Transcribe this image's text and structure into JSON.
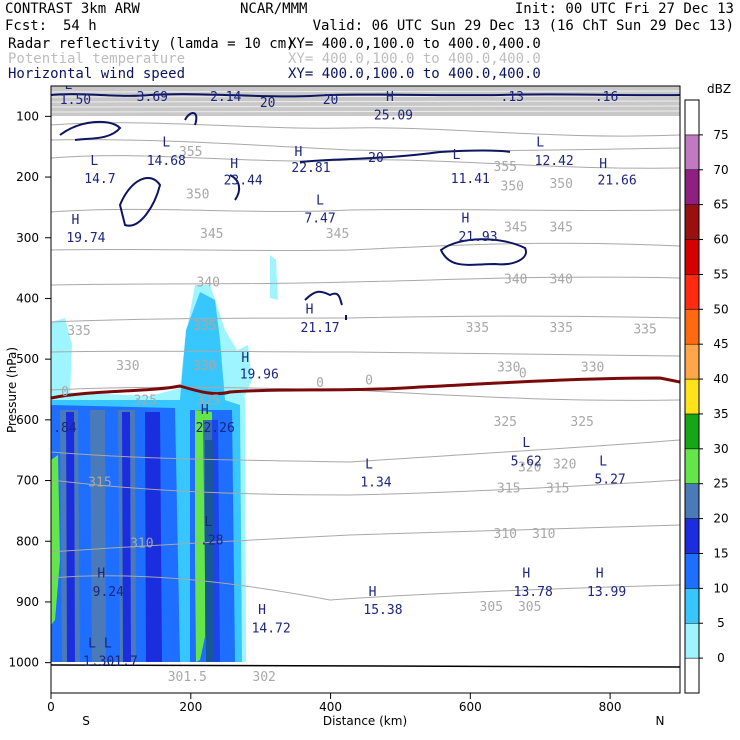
{
  "header": {
    "model": "CONTRAST  3km ARW",
    "org": "NCAR/MMM",
    "init": "Init: 00 UTC Fri 27 Dec 13",
    "fcst_label": "Fcst:",
    "fcst_value": "54 h",
    "valid": "Valid: 06 UTC Sun 29 Dec 13 (16 ChT Sun 29 Dec 13)",
    "field1_name": "Radar reflectivity (lamda = 10 cm)",
    "field1_xy": "XY= 400.0,100.0 to 400.0,400.0",
    "field2_name": "Potential temperature",
    "field2_xy": "XY= 400.0,100.0 to 400.0,400.0",
    "field3_name": "Horizontal wind speed",
    "field3_xy": "XY= 400.0,100.0 to 400.0,400.0"
  },
  "colors": {
    "theta": "#a8a8a8",
    "wind": "#0d1460",
    "zero_isotherm": "#7a0a0a"
  },
  "chart_data": {
    "type": "cross-section",
    "xlabel": "Distance (km)",
    "ylabel": "Pressure (hPa)",
    "xlim": [
      0,
      900
    ],
    "ylim": [
      1050,
      50
    ],
    "x_ticks": [
      0,
      200,
      400,
      600,
      800
    ],
    "y_ticks": [
      100,
      200,
      300,
      400,
      500,
      600,
      700,
      800,
      900,
      1000
    ],
    "x_end_labels": {
      "left": "S",
      "right": "N"
    },
    "colorbar": {
      "unit": "dBZ",
      "levels": [
        0,
        5,
        10,
        15,
        20,
        25,
        30,
        35,
        40,
        45,
        50,
        55,
        60,
        65,
        70,
        75
      ],
      "colors": [
        "#ffffff",
        "#9ff5ff",
        "#38c6ff",
        "#1e6eff",
        "#1a2ee0",
        "#4a7ab8",
        "#64e64a",
        "#16a616",
        "#ffe21a",
        "#ffa64a",
        "#ff6a10",
        "#ff2a10",
        "#d40000",
        "#9a1010",
        "#902080",
        "#c07ac0",
        "#ffffff"
      ]
    },
    "theta_labels": [
      {
        "text": "355",
        "x": 200,
        "p": 165
      },
      {
        "text": "355",
        "x": 650,
        "p": 190
      },
      {
        "text": "350",
        "x": 210,
        "p": 235
      },
      {
        "text": "350",
        "x": 660,
        "p": 222
      },
      {
        "text": "350",
        "x": 730,
        "p": 218
      },
      {
        "text": "345",
        "x": 230,
        "p": 300
      },
      {
        "text": "345",
        "x": 410,
        "p": 300
      },
      {
        "text": "345",
        "x": 665,
        "p": 290
      },
      {
        "text": "345",
        "x": 730,
        "p": 290
      },
      {
        "text": "340",
        "x": 225,
        "p": 380
      },
      {
        "text": "340",
        "x": 665,
        "p": 375
      },
      {
        "text": "340",
        "x": 730,
        "p": 375
      },
      {
        "text": "335",
        "x": 40,
        "p": 460
      },
      {
        "text": "335",
        "x": 220,
        "p": 452
      },
      {
        "text": "335",
        "x": 610,
        "p": 455
      },
      {
        "text": "335",
        "x": 730,
        "p": 455
      },
      {
        "text": "335",
        "x": 850,
        "p": 458
      },
      {
        "text": "330",
        "x": 110,
        "p": 518
      },
      {
        "text": "330",
        "x": 220,
        "p": 518
      },
      {
        "text": "330",
        "x": 655,
        "p": 520
      },
      {
        "text": "330",
        "x": 775,
        "p": 520
      },
      {
        "text": "325",
        "x": 135,
        "p": 575
      },
      {
        "text": "325",
        "x": 225,
        "p": 575
      },
      {
        "text": "325",
        "x": 650,
        "p": 610
      },
      {
        "text": "325",
        "x": 760,
        "p": 610
      },
      {
        "text": "320",
        "x": 685,
        "p": 685
      },
      {
        "text": "320",
        "x": 735,
        "p": 680
      },
      {
        "text": "315",
        "x": 70,
        "p": 710
      },
      {
        "text": "315",
        "x": 655,
        "p": 720
      },
      {
        "text": "315",
        "x": 725,
        "p": 720
      },
      {
        "text": "310",
        "x": 130,
        "p": 810
      },
      {
        "text": "310",
        "x": 650,
        "p": 795
      },
      {
        "text": "310",
        "x": 705,
        "p": 795
      },
      {
        "text": "305",
        "x": 630,
        "p": 915
      },
      {
        "text": "305",
        "x": 685,
        "p": 915
      },
      {
        "text": "301.5",
        "x": 195,
        "p": 1030
      },
      {
        "text": "302",
        "x": 305,
        "p": 1030
      }
    ],
    "wind_labels": [
      {
        "text": "L",
        "x": 25,
        "p": 55
      },
      {
        "text": "1.50",
        "x": 35,
        "p": 80
      },
      {
        "text": "3.69",
        "x": 145,
        "p": 75
      },
      {
        "text": "2.14",
        "x": 250,
        "p": 75
      },
      {
        "text": "20",
        "x": 310,
        "p": 85
      },
      {
        "text": "20",
        "x": 400,
        "p": 80
      },
      {
        "text": "H",
        "x": 485,
        "p": 75
      },
      {
        "text": "25.09",
        "x": 490,
        "p": 105
      },
      {
        "text": ".13",
        "x": 660,
        "p": 75
      },
      {
        "text": ".16",
        "x": 795,
        "p": 75
      },
      {
        "text": "L",
        "x": 165,
        "p": 150
      },
      {
        "text": "14.68",
        "x": 165,
        "p": 180
      },
      {
        "text": "20",
        "x": 465,
        "p": 175
      },
      {
        "text": "L",
        "x": 580,
        "p": 170
      },
      {
        "text": "11.41",
        "x": 600,
        "p": 210
      },
      {
        "text": "L",
        "x": 700,
        "p": 150
      },
      {
        "text": "12.42",
        "x": 720,
        "p": 180
      },
      {
        "text": "L",
        "x": 62,
        "p": 180
      },
      {
        "text": "14.7",
        "x": 70,
        "p": 210
      },
      {
        "text": "H",
        "x": 262,
        "p": 185
      },
      {
        "text": "23.44",
        "x": 275,
        "p": 212
      },
      {
        "text": "H",
        "x": 354,
        "p": 165
      },
      {
        "text": "22.81",
        "x": 372,
        "p": 192
      },
      {
        "text": "H",
        "x": 790,
        "p": 185
      },
      {
        "text": "21.66",
        "x": 810,
        "p": 212
      },
      {
        "text": "L",
        "x": 385,
        "p": 245
      },
      {
        "text": "7.47",
        "x": 385,
        "p": 275
      },
      {
        "text": "H",
        "x": 35,
        "p": 277
      },
      {
        "text": "19.74",
        "x": 50,
        "p": 307
      },
      {
        "text": "H",
        "x": 593,
        "p": 275
      },
      {
        "text": "21.93",
        "x": 611,
        "p": 305
      },
      {
        "text": "H",
        "x": 370,
        "p": 425
      },
      {
        "text": "21.17",
        "x": 385,
        "p": 455
      },
      {
        "text": "H",
        "x": 278,
        "p": 505
      },
      {
        "text": "19.96",
        "x": 298,
        "p": 532
      },
      {
        "text": "H",
        "x": 220,
        "p": 590
      },
      {
        "text": "22.26",
        "x": 235,
        "p": 620
      },
      {
        "text": ".84",
        "x": 20,
        "p": 620
      },
      {
        "text": "L",
        "x": 680,
        "p": 645
      },
      {
        "text": "5.62",
        "x": 680,
        "p": 675
      },
      {
        "text": "L",
        "x": 455,
        "p": 680
      },
      {
        "text": "1.34",
        "x": 465,
        "p": 710
      },
      {
        "text": "L",
        "x": 790,
        "p": 675
      },
      {
        "text": "5.27",
        "x": 800,
        "p": 705
      },
      {
        "text": "L",
        "x": 225,
        "p": 775
      },
      {
        "text": ".28",
        "x": 230,
        "p": 805
      },
      {
        "text": "H",
        "x": 72,
        "p": 860
      },
      {
        "text": "9.24",
        "x": 82,
        "p": 890
      },
      {
        "text": "H",
        "x": 680,
        "p": 860
      },
      {
        "text": "13.78",
        "x": 690,
        "p": 890
      },
      {
        "text": "H",
        "x": 785,
        "p": 860
      },
      {
        "text": "13.99",
        "x": 795,
        "p": 890
      },
      {
        "text": "H",
        "x": 460,
        "p": 890
      },
      {
        "text": "15.38",
        "x": 475,
        "p": 920
      },
      {
        "text": "H",
        "x": 302,
        "p": 920
      },
      {
        "text": "14.72",
        "x": 315,
        "p": 950
      },
      {
        "text": "L L",
        "x": 70,
        "p": 975
      },
      {
        "text": "1.301.7",
        "x": 85,
        "p": 1005
      }
    ],
    "zero_labels": [
      {
        "text": "0",
        "x": 20,
        "p": 561
      },
      {
        "text": "0",
        "x": 385,
        "p": 546
      },
      {
        "text": "0",
        "x": 455,
        "p": 542
      },
      {
        "text": "0",
        "x": 675,
        "p": 530
      }
    ]
  }
}
